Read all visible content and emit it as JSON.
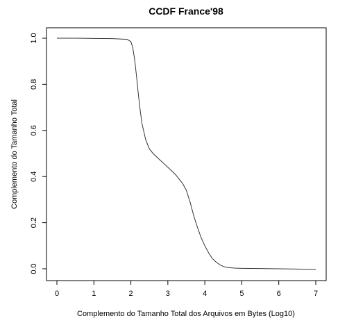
{
  "chart_data": {
    "type": "line",
    "title": "CCDF France'98",
    "xlabel": "Complemento do Tamanho Total dos Arquivos em Bytes (Log10)",
    "ylabel": "Complemento do Tamanho Total",
    "xlim": [
      0,
      7
    ],
    "ylim": [
      0,
      1
    ],
    "x_ticks": [
      "0",
      "1",
      "2",
      "3",
      "4",
      "5",
      "6",
      "7"
    ],
    "y_ticks": [
      "0.0",
      "0.2",
      "0.4",
      "0.6",
      "0.8",
      "1.0"
    ],
    "grid": false,
    "line_color": "#333333",
    "series": [
      {
        "x": [
          0,
          0.5,
          1.0,
          1.5,
          1.9,
          2.0,
          2.05,
          2.1,
          2.15,
          2.2,
          2.25,
          2.3,
          2.4,
          2.5,
          2.6,
          2.7,
          2.8,
          2.9,
          3.0,
          3.1,
          3.2,
          3.3,
          3.4,
          3.5,
          3.6,
          3.7,
          3.8,
          3.9,
          4.0,
          4.1,
          4.2,
          4.3,
          4.4,
          4.5,
          4.6,
          4.8,
          5.0,
          5.5,
          6.0,
          6.5,
          7.0
        ],
        "y": [
          1.0,
          1.0,
          0.999,
          0.998,
          0.995,
          0.985,
          0.96,
          0.91,
          0.84,
          0.76,
          0.69,
          0.63,
          0.56,
          0.52,
          0.5,
          0.485,
          0.47,
          0.455,
          0.44,
          0.425,
          0.41,
          0.39,
          0.37,
          0.34,
          0.29,
          0.23,
          0.18,
          0.135,
          0.1,
          0.07,
          0.045,
          0.03,
          0.018,
          0.01,
          0.006,
          0.003,
          0.002,
          0.001,
          0.0,
          -0.001,
          -0.003
        ]
      }
    ]
  }
}
